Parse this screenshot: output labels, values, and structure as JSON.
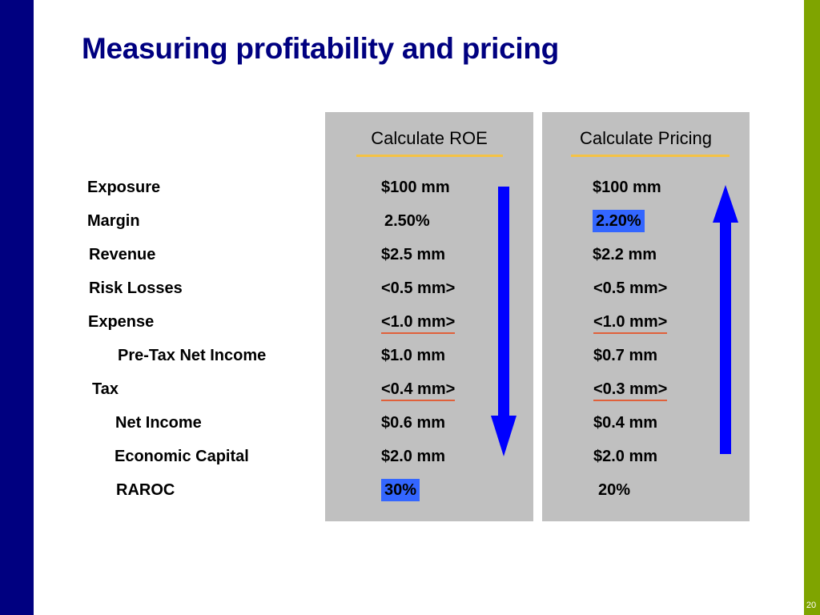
{
  "slide": {
    "title": "Measuring profitability and pricing",
    "page_number": "20",
    "colors": {
      "left_bar": "#000080",
      "right_bar": "#7fa400",
      "panel": "#c0c0c0",
      "highlight": "#3366ff",
      "arrow": "#0000ff",
      "header_underline": "#f5c244",
      "subtotal_underline": "#e0603a"
    }
  },
  "panels": {
    "roe_header": "Calculate ROE",
    "pricing_header": "Calculate Pricing",
    "roe_arrow_direction": "down",
    "pricing_arrow_direction": "up"
  },
  "rows": [
    {
      "label": "Exposure",
      "roe": "$100 mm",
      "pricing": "$100 mm"
    },
    {
      "label": "Margin",
      "roe": "2.50%",
      "pricing": "2.20%",
      "pricing_highlight": true
    },
    {
      "label": "Revenue",
      "roe": "$2.5 mm",
      "pricing": "$2.2 mm"
    },
    {
      "label": "Risk Losses",
      "roe": "<0.5 mm>",
      "pricing": "<0.5 mm>"
    },
    {
      "label": "Expense",
      "roe": "<1.0 mm>",
      "pricing": "<1.0 mm>",
      "underlined": true
    },
    {
      "label": "Pre-Tax Net Income",
      "roe": "$1.0 mm",
      "pricing": "$0.7 mm"
    },
    {
      "label": "Tax",
      "roe": "<0.4 mm>",
      "pricing": "<0.3 mm>",
      "underlined": true
    },
    {
      "label": "Net Income",
      "roe": "$0.6 mm",
      "pricing": "$0.4 mm"
    },
    {
      "label": "Economic Capital",
      "roe": "$2.0 mm",
      "pricing": "$2.0 mm"
    },
    {
      "label": "RAROC",
      "roe": "30%",
      "pricing": "20%",
      "roe_highlight": true
    }
  ]
}
